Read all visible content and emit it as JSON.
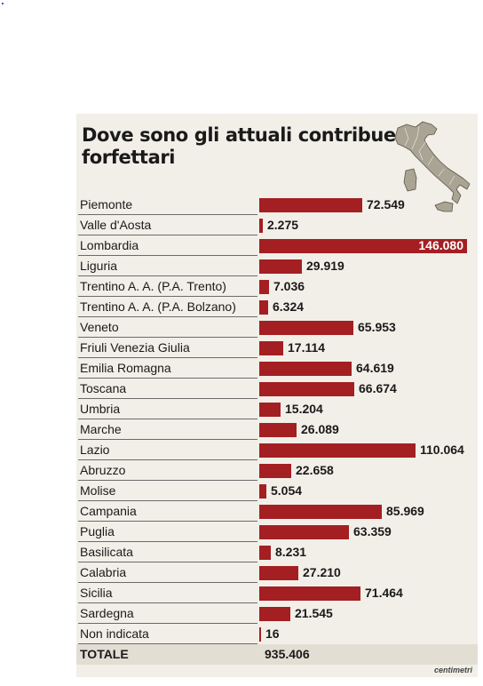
{
  "title": "Dove sono gli attuali contribuenti forfettari",
  "source": "centimetri",
  "colors": {
    "bar": "#a31f22",
    "panel": "#f2efe8",
    "total_row": "#e3ded3"
  },
  "chart_data": {
    "type": "bar",
    "orientation": "horizontal",
    "title": "Dove sono gli attuali contribuenti forfettari",
    "categories": [
      "Piemonte",
      "Valle d'Aosta",
      "Lombardia",
      "Liguria",
      "Trentino A. A. (P.A. Trento)",
      "Trentino A. A. (P.A. Bolzano)",
      "Veneto",
      "Friuli Venezia Giulia",
      "Emilia Romagna",
      "Toscana",
      "Umbria",
      "Marche",
      "Lazio",
      "Abruzzo",
      "Molise",
      "Campania",
      "Puglia",
      "Basilicata",
      "Calabria",
      "Sicilia",
      "Sardegna",
      "Non indicata"
    ],
    "values": [
      72549,
      2275,
      146080,
      29919,
      7036,
      6324,
      65953,
      17114,
      64619,
      66674,
      15204,
      26089,
      110064,
      22658,
      5054,
      85969,
      63359,
      8231,
      27210,
      71464,
      21545,
      16
    ],
    "value_labels": [
      "72.549",
      "2.275",
      "146.080",
      "29.919",
      "7.036",
      "6.324",
      "65.953",
      "17.114",
      "64.619",
      "66.674",
      "15.204",
      "26.089",
      "110.064",
      "22.658",
      "5.054",
      "85.969",
      "63.359",
      "8.231",
      "27.210",
      "71.464",
      "21.545",
      "16"
    ],
    "total": {
      "label": "TOTALE",
      "value": 935406,
      "display": "935.406"
    },
    "xlim": [
      0,
      146080
    ]
  }
}
